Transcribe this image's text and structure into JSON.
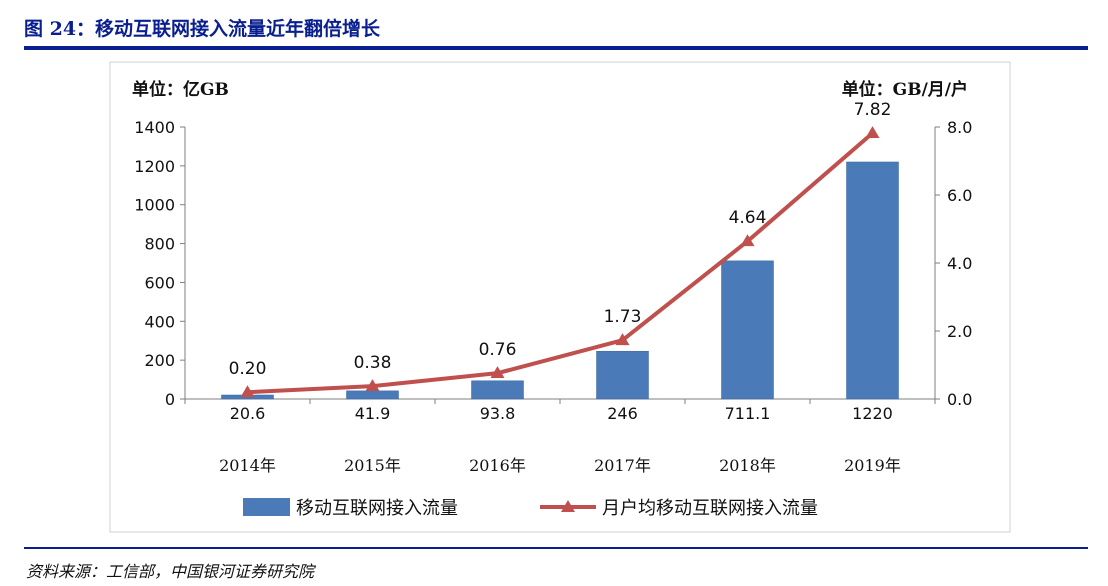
{
  "figure_title": "图 24：移动互联网接入流量近年翻倍增长",
  "source_text": "资料来源：工信部，中国银河证券研究院",
  "colors": {
    "title": "#0a1f8f",
    "bar": "#4a7ab8",
    "line": "#c0504d"
  },
  "chart_data": {
    "type": "bar",
    "categories": [
      "2014年",
      "2015年",
      "2016年",
      "2017年",
      "2018年",
      "2019年"
    ],
    "series": [
      {
        "name": "移动互联网接入流量",
        "kind": "bar",
        "axis": "left",
        "values": [
          20.6,
          41.9,
          93.8,
          246,
          711.1,
          1220
        ],
        "labels": [
          "20.6",
          "41.9",
          "93.8",
          "246",
          "711.1",
          "1220"
        ]
      },
      {
        "name": "月户均移动互联网接入流量",
        "kind": "line",
        "marker": "triangle",
        "axis": "right",
        "values": [
          0.2,
          0.38,
          0.76,
          1.73,
          4.64,
          7.82
        ],
        "labels": [
          "0.20",
          "0.38",
          "0.76",
          "1.73",
          "4.64",
          "7.82"
        ]
      }
    ],
    "left_axis": {
      "unit_label": "单位：亿GB",
      "ylim": [
        0,
        1400
      ],
      "ticks": [
        "0",
        "200",
        "400",
        "600",
        "800",
        "1000",
        "1200",
        "1400"
      ]
    },
    "right_axis": {
      "unit_label": "单位：GB/月/户",
      "ylim": [
        0,
        8
      ],
      "ticks": [
        "0.0",
        "2.0",
        "4.0",
        "6.0",
        "8.0"
      ]
    },
    "grid": false,
    "legend_position": "bottom"
  }
}
